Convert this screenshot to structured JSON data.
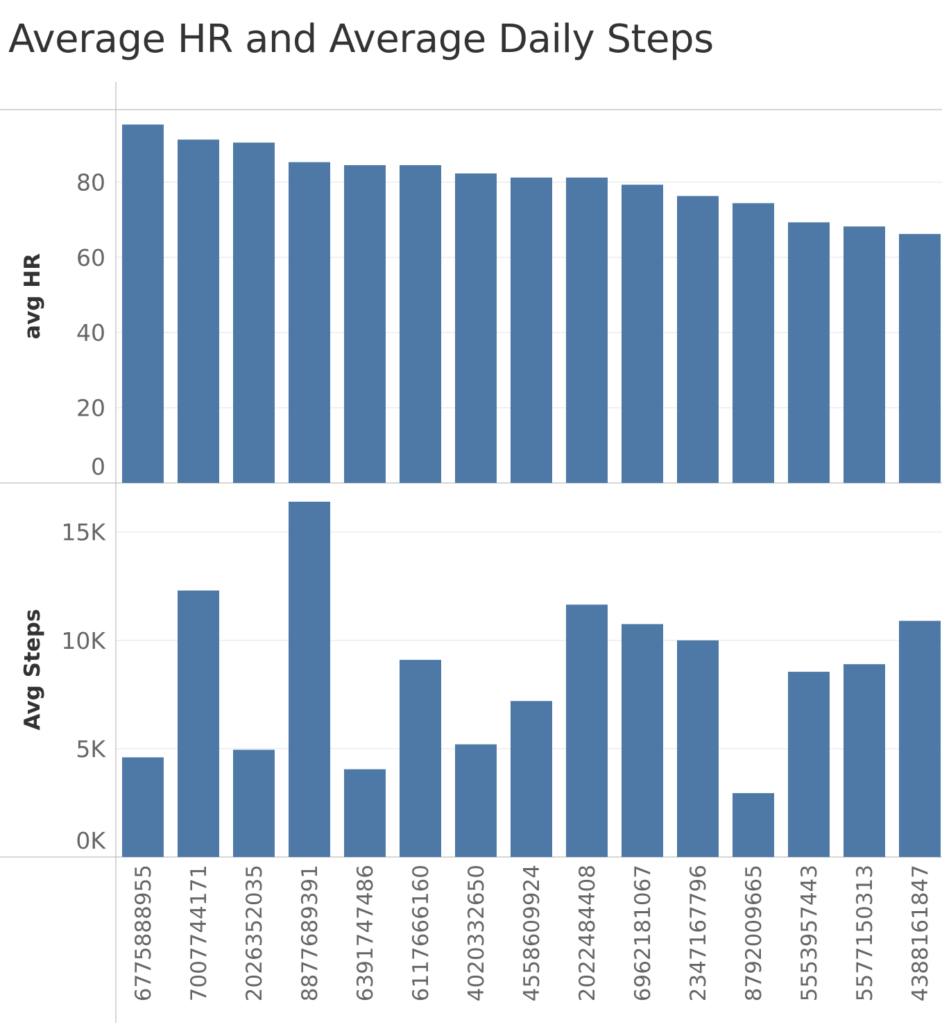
{
  "chart_data": {
    "type": "bar",
    "title": "Average HR and Average Daily Steps",
    "categories": [
      "6775888955",
      "7007744171",
      "2026352035",
      "8877689391",
      "6391747486",
      "6117666160",
      "4020332650",
      "4558609924",
      "2022484408",
      "6962181067",
      "2347167796",
      "8792009665",
      "5553957443",
      "5577150313",
      "4388161847"
    ],
    "panels": [
      {
        "ylabel": "avg HR",
        "ylim": [
          0,
          100
        ],
        "ticks": [
          {
            "value": 0,
            "label": "0"
          },
          {
            "value": 20,
            "label": "20"
          },
          {
            "value": 40,
            "label": "40"
          },
          {
            "value": 60,
            "label": "60"
          },
          {
            "value": 80,
            "label": "80"
          }
        ],
        "values": [
          95.3,
          91.3,
          90.5,
          85.3,
          84.5,
          84.5,
          82.3,
          81.2,
          81.2,
          79.3,
          76.3,
          74.4,
          69.3,
          68.2,
          66.2
        ]
      },
      {
        "ylabel": "Avg Steps",
        "ylim": [
          0,
          16500
        ],
        "ticks": [
          {
            "value": 0,
            "label": "0K"
          },
          {
            "value": 5000,
            "label": "5K"
          },
          {
            "value": 10000,
            "label": "10K"
          },
          {
            "value": 15000,
            "label": "15K"
          }
        ],
        "values": [
          4600,
          12300,
          4950,
          16400,
          4050,
          9100,
          5200,
          7200,
          11650,
          10750,
          10000,
          2950,
          8550,
          8900,
          10900
        ]
      }
    ],
    "grid": true,
    "legend": "none",
    "bar_color": "#4e79a7"
  }
}
